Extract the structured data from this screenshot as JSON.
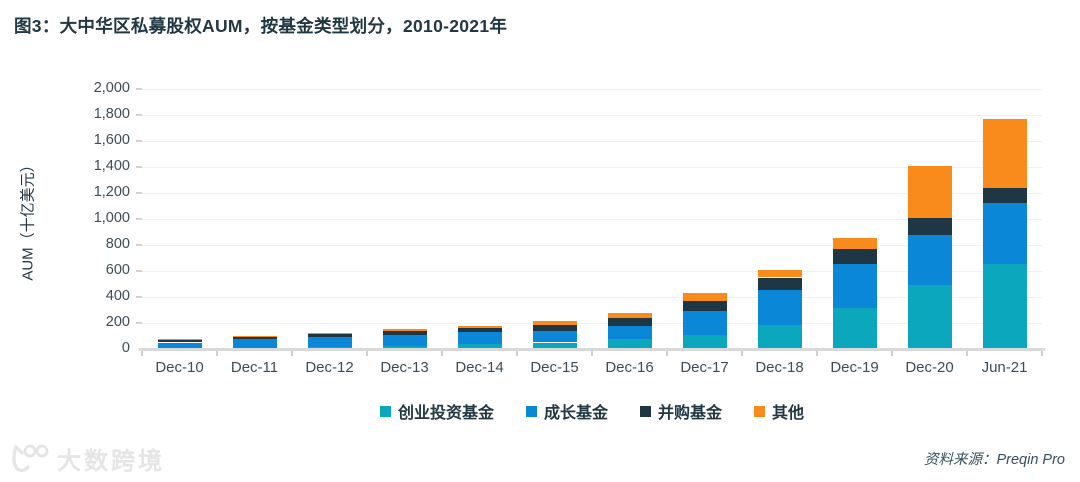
{
  "figure": {
    "title_prefix": "图3："
  },
  "watermark": {
    "text": "大数跨境"
  },
  "source": {
    "label": "资料来源：Preqin Pro"
  },
  "chart_data": {
    "type": "bar",
    "stacked": true,
    "title": "图3：大中华区私募股权AUM，按基金类型划分，2010-2021年",
    "ylabel": "AUM（十亿美元）",
    "xlabel": "",
    "categories": [
      "Dec-10",
      "Dec-11",
      "Dec-12",
      "Dec-13",
      "Dec-14",
      "Dec-15",
      "Dec-16",
      "Dec-17",
      "Dec-18",
      "Dec-19",
      "Dec-20",
      "Jun-21"
    ],
    "series": [
      {
        "name": "创业投资基金",
        "color": "#0ba7bd",
        "values": [
          5,
          10,
          15,
          25,
          40,
          50,
          80,
          105,
          185,
          315,
          490,
          655
        ]
      },
      {
        "name": "成长基金",
        "color": "#0a87d6",
        "values": [
          45,
          65,
          75,
          85,
          90,
          85,
          100,
          190,
          270,
          340,
          385,
          470
        ]
      },
      {
        "name": "并购基金",
        "color": "#1f3744",
        "values": [
          20,
          20,
          25,
          30,
          30,
          50,
          60,
          75,
          95,
          115,
          130,
          110
        ]
      },
      {
        "name": "其他",
        "color": "#f98b1c",
        "values": [
          5,
          5,
          10,
          15,
          15,
          30,
          40,
          60,
          60,
          85,
          405,
          535
        ]
      }
    ],
    "totals": [
      75,
      100,
      125,
      155,
      175,
      215,
      280,
      430,
      610,
      855,
      1410,
      1770
    ],
    "ylim": [
      0,
      2000
    ],
    "yticks": [
      0,
      200,
      400,
      600,
      800,
      1000,
      1200,
      1400,
      1600,
      1800,
      2000
    ],
    "grid": "horizontal, light gray, every 200",
    "legend_position": "bottom-center"
  }
}
